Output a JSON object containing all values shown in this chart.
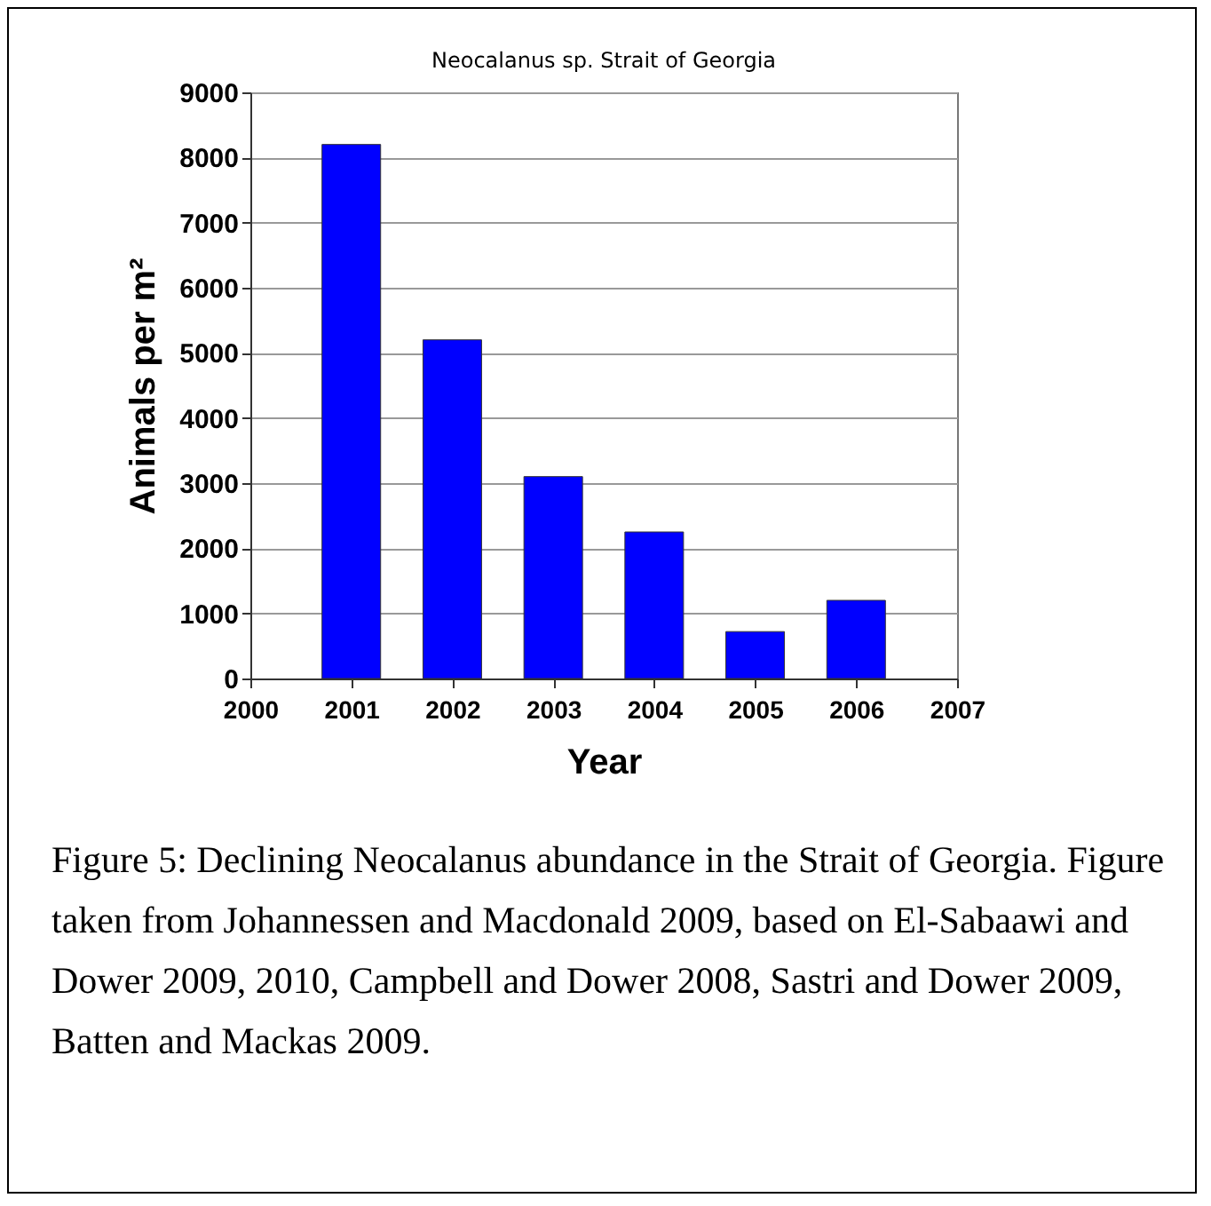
{
  "chart_data": {
    "type": "bar",
    "title": "Neocalanus sp. Strait of Georgia",
    "xlabel": "Year",
    "ylabel": "Animals per m²",
    "x": [
      2001,
      2002,
      2003,
      2004,
      2005,
      2006
    ],
    "values": [
      8200,
      5200,
      3100,
      2250,
      720,
      1200
    ],
    "color": "#0000ff",
    "xlim": [
      2000,
      2007
    ],
    "xticks": [
      2000,
      2001,
      2002,
      2003,
      2004,
      2005,
      2006,
      2007
    ],
    "ylim": [
      0,
      9000
    ],
    "yticks": [
      0,
      1000,
      2000,
      3000,
      4000,
      5000,
      6000,
      7000,
      8000,
      9000
    ],
    "grid": "y",
    "annotations": [
      "Figure 5: Declining Neocalanus abundance in the Strait of Georgia. Figure taken from Johannessen and Macdonald 2009, based on El-Sabaawi and Dower 2009, 2010, Campbell and Dower 2008, Sastri and Dower 2009, Batten and Mackas 2009."
    ]
  }
}
